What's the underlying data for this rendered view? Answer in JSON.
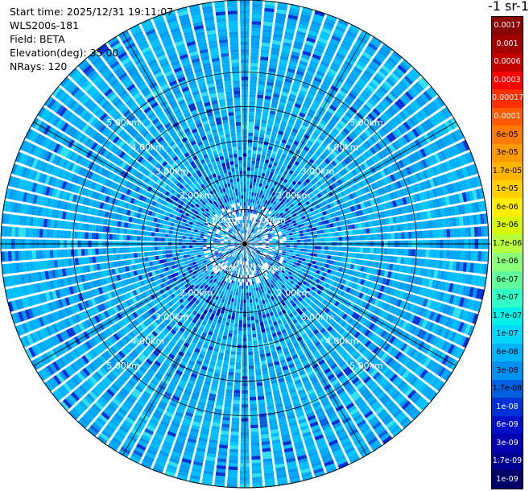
{
  "header": {
    "start_time": "Start time: 2025/12/31 19:11:07",
    "instrument": "WLS200s-181",
    "field": "Field: BETA",
    "elevation": "Elevation(deg): 35.00",
    "nrays": "NRays: 120"
  },
  "colorbar": {
    "title": "-1 sr-1",
    "labels": [
      "0.0017",
      "0.001",
      "0.0006",
      "0.0003",
      "0.00017",
      "0.0001",
      "6e-05",
      "3e-05",
      "1.7e-05",
      "1e-05",
      "6e-06",
      "3e-06",
      "1.7e-06",
      "1e-06",
      "6e-07",
      "3e-07",
      "1.7e-07",
      "1e-07",
      "6e-08",
      "3e-08",
      "1.7e-08",
      "1e-08",
      "6e-09",
      "3e-09",
      "1.7e-09",
      "1e-09"
    ],
    "colors": [
      "#8b0000",
      "#a30000",
      "#c40000",
      "#ff0000",
      "#ff3000",
      "#ff5a00",
      "#ff7a00",
      "#ff9a00",
      "#ffb400",
      "#ffd000",
      "#ffee00",
      "#d8f800",
      "#b8ff40",
      "#8cff7a",
      "#60ff9c",
      "#30ffc8",
      "#00f0e8",
      "#00d8ff",
      "#00b4ff",
      "#0090f0",
      "#0060e0",
      "#0030d8",
      "#0010c8",
      "#0000b0",
      "#000090",
      "#000068"
    ],
    "light_label_indices": [
      0,
      1,
      2,
      3,
      4,
      5,
      21,
      22,
      23,
      24,
      25
    ]
  },
  "chart_data": {
    "type": "ppi",
    "field": "BETA",
    "elevation_deg": 35.0,
    "n_rays": 120,
    "range_rings_km": [
      1.0,
      2.0,
      3.0,
      4.0,
      5.0
    ],
    "range_labels": [
      "1.00km",
      "2.00km",
      "3.00km",
      "4.00km",
      "5.00km"
    ],
    "max_range_km": 7.1,
    "colorscale": "log",
    "value_range": [
      1e-09,
      0.0017
    ]
  }
}
